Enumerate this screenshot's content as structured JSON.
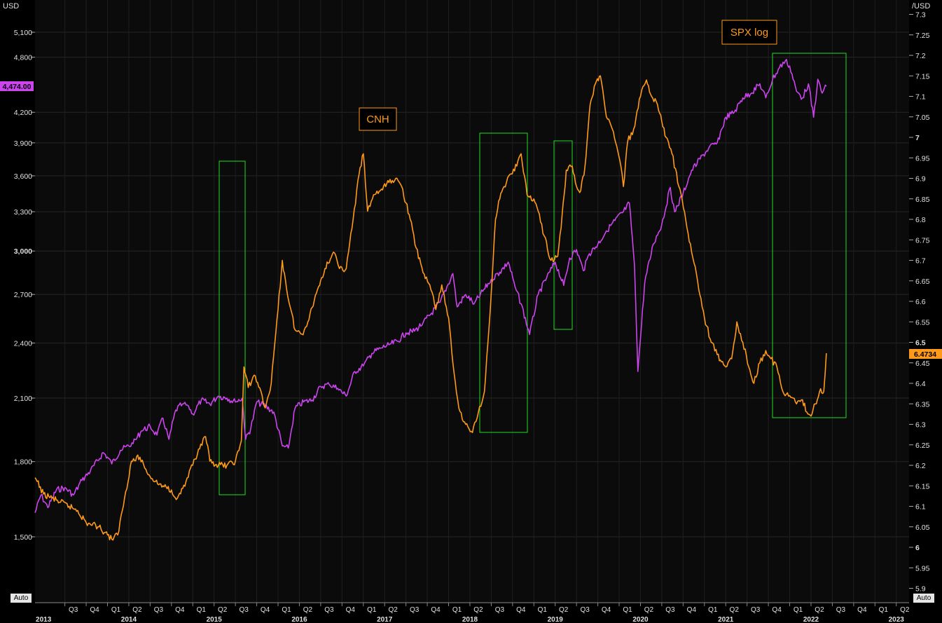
{
  "chart_data": {
    "type": "line",
    "left_axis": {
      "unit_label": "USD",
      "ticks": [
        "1,500",
        "1,800",
        "2,100",
        "2,400",
        "2,700",
        "3,000",
        "3,300",
        "3,600",
        "3,900",
        "4,200",
        "4,800",
        "5,100"
      ],
      "bold_ticks": [
        "3,000"
      ],
      "last_value": "4,474.00",
      "scale": "log"
    },
    "right_axis": {
      "unit_label": "/USD",
      "ticks": [
        "5.9",
        "5.95",
        "6",
        "6.05",
        "6.1",
        "6.15",
        "6.2",
        "6.25",
        "6.3",
        "6.35",
        "6.4",
        "6.45",
        "6.5",
        "6.55",
        "6.6",
        "6.65",
        "6.7",
        "6.75",
        "6.8",
        "6.85",
        "6.9",
        "6.95",
        "7",
        "7.05",
        "7.1",
        "7.15",
        "7.2",
        "7.25",
        "7.3"
      ],
      "bold_ticks": [
        "6",
        "6.5",
        "7"
      ],
      "last_value": "6.4734"
    },
    "x_axis": {
      "quarters": [
        {
          "t": 2013.5,
          "label": "Q3"
        },
        {
          "t": 2013.75,
          "label": "Q4"
        },
        {
          "t": 2014.0,
          "label": "Q1"
        },
        {
          "t": 2014.25,
          "label": "Q2"
        },
        {
          "t": 2014.5,
          "label": "Q3"
        },
        {
          "t": 2014.75,
          "label": "Q4"
        },
        {
          "t": 2015.0,
          "label": "Q1"
        },
        {
          "t": 2015.25,
          "label": "Q2"
        },
        {
          "t": 2015.5,
          "label": "Q3"
        },
        {
          "t": 2015.75,
          "label": "Q4"
        },
        {
          "t": 2016.0,
          "label": "Q1"
        },
        {
          "t": 2016.25,
          "label": "Q2"
        },
        {
          "t": 2016.5,
          "label": "Q3"
        },
        {
          "t": 2016.75,
          "label": "Q4"
        },
        {
          "t": 2017.0,
          "label": "Q1"
        },
        {
          "t": 2017.25,
          "label": "Q2"
        },
        {
          "t": 2017.5,
          "label": "Q3"
        },
        {
          "t": 2017.75,
          "label": "Q4"
        },
        {
          "t": 2018.0,
          "label": "Q1"
        },
        {
          "t": 2018.25,
          "label": "Q2"
        },
        {
          "t": 2018.5,
          "label": "Q3"
        },
        {
          "t": 2018.75,
          "label": "Q4"
        },
        {
          "t": 2019.0,
          "label": "Q1"
        },
        {
          "t": 2019.25,
          "label": "Q2"
        },
        {
          "t": 2019.5,
          "label": "Q3"
        },
        {
          "t": 2019.75,
          "label": "Q4"
        },
        {
          "t": 2020.0,
          "label": "Q1"
        },
        {
          "t": 2020.25,
          "label": "Q2"
        },
        {
          "t": 2020.5,
          "label": "Q3"
        },
        {
          "t": 2020.75,
          "label": "Q4"
        },
        {
          "t": 2021.0,
          "label": "Q1"
        },
        {
          "t": 2021.25,
          "label": "Q2"
        },
        {
          "t": 2021.5,
          "label": "Q3"
        },
        {
          "t": 2021.75,
          "label": "Q4"
        },
        {
          "t": 2022.0,
          "label": "Q1"
        },
        {
          "t": 2022.25,
          "label": "Q2"
        },
        {
          "t": 2022.5,
          "label": "Q3"
        },
        {
          "t": 2022.75,
          "label": "Q4"
        },
        {
          "t": 2023.0,
          "label": "Q1"
        },
        {
          "t": 2023.25,
          "label": "Q2"
        }
      ],
      "years": [
        {
          "t": 2013.25,
          "label": "2013"
        },
        {
          "t": 2014.25,
          "label": "2014"
        },
        {
          "t": 2015.25,
          "label": "2015"
        },
        {
          "t": 2016.25,
          "label": "2016"
        },
        {
          "t": 2017.25,
          "label": "2017"
        },
        {
          "t": 2018.25,
          "label": "2018"
        },
        {
          "t": 2019.25,
          "label": "2019"
        },
        {
          "t": 2020.25,
          "label": "2020"
        },
        {
          "t": 2021.25,
          "label": "2021"
        },
        {
          "t": 2022.25,
          "label": "2022"
        },
        {
          "t": 2023.25,
          "label": "2023"
        }
      ]
    },
    "series": [
      {
        "name": "SPX log",
        "axis": "left",
        "color": "#cc44ee",
        "points": [
          [
            2013.15,
            1590
          ],
          [
            2013.22,
            1660
          ],
          [
            2013.3,
            1610
          ],
          [
            2013.4,
            1680
          ],
          [
            2013.5,
            1690
          ],
          [
            2013.6,
            1660
          ],
          [
            2013.7,
            1720
          ],
          [
            2013.8,
            1760
          ],
          [
            2013.95,
            1840
          ],
          [
            2014.0,
            1820
          ],
          [
            2014.05,
            1790
          ],
          [
            2014.15,
            1850
          ],
          [
            2014.3,
            1880
          ],
          [
            2014.4,
            1940
          ],
          [
            2014.5,
            1960
          ],
          [
            2014.58,
            1920
          ],
          [
            2014.65,
            2000
          ],
          [
            2014.72,
            1900
          ],
          [
            2014.8,
            2040
          ],
          [
            2014.88,
            2070
          ],
          [
            2014.95,
            2060
          ],
          [
            2015.0,
            2020
          ],
          [
            2015.1,
            2090
          ],
          [
            2015.2,
            2070
          ],
          [
            2015.3,
            2110
          ],
          [
            2015.4,
            2100
          ],
          [
            2015.5,
            2080
          ],
          [
            2015.58,
            2100
          ],
          [
            2015.62,
            1900
          ],
          [
            2015.68,
            1950
          ],
          [
            2015.75,
            2080
          ],
          [
            2015.85,
            2060
          ],
          [
            2015.95,
            2030
          ],
          [
            2016.05,
            1870
          ],
          [
            2016.12,
            1860
          ],
          [
            2016.2,
            2050
          ],
          [
            2016.3,
            2080
          ],
          [
            2016.4,
            2090
          ],
          [
            2016.5,
            2160
          ],
          [
            2016.6,
            2170
          ],
          [
            2016.7,
            2150
          ],
          [
            2016.8,
            2110
          ],
          [
            2016.9,
            2240
          ],
          [
            2017.0,
            2270
          ],
          [
            2017.1,
            2340
          ],
          [
            2017.2,
            2370
          ],
          [
            2017.3,
            2390
          ],
          [
            2017.4,
            2410
          ],
          [
            2017.5,
            2460
          ],
          [
            2017.6,
            2470
          ],
          [
            2017.7,
            2520
          ],
          [
            2017.8,
            2580
          ],
          [
            2017.9,
            2650
          ],
          [
            2018.05,
            2840
          ],
          [
            2018.1,
            2620
          ],
          [
            2018.2,
            2700
          ],
          [
            2018.3,
            2640
          ],
          [
            2018.4,
            2720
          ],
          [
            2018.5,
            2800
          ],
          [
            2018.6,
            2850
          ],
          [
            2018.7,
            2920
          ],
          [
            2018.78,
            2750
          ],
          [
            2018.85,
            2640
          ],
          [
            2018.95,
            2450
          ],
          [
            2019.05,
            2700
          ],
          [
            2019.15,
            2810
          ],
          [
            2019.25,
            2920
          ],
          [
            2019.35,
            2760
          ],
          [
            2019.42,
            2950
          ],
          [
            2019.5,
            3010
          ],
          [
            2019.58,
            2860
          ],
          [
            2019.65,
            2980
          ],
          [
            2019.75,
            3050
          ],
          [
            2019.85,
            3150
          ],
          [
            2019.95,
            3230
          ],
          [
            2020.05,
            3300
          ],
          [
            2020.12,
            3370
          ],
          [
            2020.18,
            2900
          ],
          [
            2020.22,
            2240
          ],
          [
            2020.3,
            2780
          ],
          [
            2020.4,
            3050
          ],
          [
            2020.5,
            3200
          ],
          [
            2020.6,
            3500
          ],
          [
            2020.65,
            3300
          ],
          [
            2020.75,
            3450
          ],
          [
            2020.85,
            3650
          ],
          [
            2020.95,
            3750
          ],
          [
            2021.05,
            3850
          ],
          [
            2021.15,
            3900
          ],
          [
            2021.25,
            4150
          ],
          [
            2021.35,
            4200
          ],
          [
            2021.45,
            4350
          ],
          [
            2021.55,
            4400
          ],
          [
            2021.65,
            4500
          ],
          [
            2021.72,
            4350
          ],
          [
            2021.8,
            4550
          ],
          [
            2021.88,
            4680
          ],
          [
            2021.95,
            4760
          ],
          [
            2022.0,
            4700
          ],
          [
            2022.08,
            4420
          ],
          [
            2022.15,
            4350
          ],
          [
            2022.22,
            4500
          ],
          [
            2022.28,
            4150
          ],
          [
            2022.33,
            4550
          ],
          [
            2022.38,
            4400
          ],
          [
            2022.43,
            4474
          ]
        ]
      },
      {
        "name": "CNH",
        "axis": "right",
        "color": "#ff9a1a",
        "points": [
          [
            2013.15,
            6.17
          ],
          [
            2013.25,
            6.13
          ],
          [
            2013.35,
            6.12
          ],
          [
            2013.45,
            6.11
          ],
          [
            2013.55,
            6.1
          ],
          [
            2013.65,
            6.09
          ],
          [
            2013.75,
            6.06
          ],
          [
            2013.9,
            6.05
          ],
          [
            2014.0,
            6.03
          ],
          [
            2014.05,
            6.02
          ],
          [
            2014.12,
            6.03
          ],
          [
            2014.2,
            6.12
          ],
          [
            2014.28,
            6.21
          ],
          [
            2014.38,
            6.22
          ],
          [
            2014.45,
            6.19
          ],
          [
            2014.55,
            6.16
          ],
          [
            2014.65,
            6.15
          ],
          [
            2014.75,
            6.14
          ],
          [
            2014.82,
            6.12
          ],
          [
            2014.92,
            6.16
          ],
          [
            2015.0,
            6.2
          ],
          [
            2015.08,
            6.24
          ],
          [
            2015.15,
            6.27
          ],
          [
            2015.2,
            6.21
          ],
          [
            2015.3,
            6.2
          ],
          [
            2015.4,
            6.2
          ],
          [
            2015.5,
            6.21
          ],
          [
            2015.57,
            6.26
          ],
          [
            2015.6,
            6.44
          ],
          [
            2015.65,
            6.39
          ],
          [
            2015.72,
            6.42
          ],
          [
            2015.8,
            6.38
          ],
          [
            2015.85,
            6.34
          ],
          [
            2015.92,
            6.4
          ],
          [
            2016.0,
            6.58
          ],
          [
            2016.05,
            6.7
          ],
          [
            2016.1,
            6.63
          ],
          [
            2016.2,
            6.53
          ],
          [
            2016.28,
            6.52
          ],
          [
            2016.35,
            6.55
          ],
          [
            2016.45,
            6.62
          ],
          [
            2016.55,
            6.68
          ],
          [
            2016.65,
            6.72
          ],
          [
            2016.72,
            6.68
          ],
          [
            2016.8,
            6.68
          ],
          [
            2016.88,
            6.8
          ],
          [
            2016.95,
            6.91
          ],
          [
            2017.0,
            6.96
          ],
          [
            2017.05,
            6.82
          ],
          [
            2017.12,
            6.86
          ],
          [
            2017.2,
            6.87
          ],
          [
            2017.3,
            6.89
          ],
          [
            2017.38,
            6.9
          ],
          [
            2017.45,
            6.88
          ],
          [
            2017.55,
            6.8
          ],
          [
            2017.62,
            6.73
          ],
          [
            2017.7,
            6.67
          ],
          [
            2017.78,
            6.64
          ],
          [
            2017.85,
            6.58
          ],
          [
            2017.92,
            6.64
          ],
          [
            2018.0,
            6.56
          ],
          [
            2018.05,
            6.45
          ],
          [
            2018.12,
            6.34
          ],
          [
            2018.2,
            6.3
          ],
          [
            2018.28,
            6.28
          ],
          [
            2018.35,
            6.33
          ],
          [
            2018.42,
            6.38
          ],
          [
            2018.5,
            6.62
          ],
          [
            2018.55,
            6.8
          ],
          [
            2018.6,
            6.85
          ],
          [
            2018.65,
            6.88
          ],
          [
            2018.72,
            6.91
          ],
          [
            2018.8,
            6.93
          ],
          [
            2018.85,
            6.96
          ],
          [
            2018.92,
            6.86
          ],
          [
            2019.0,
            6.85
          ],
          [
            2019.05,
            6.82
          ],
          [
            2019.12,
            6.76
          ],
          [
            2019.2,
            6.7
          ],
          [
            2019.28,
            6.71
          ],
          [
            2019.32,
            6.78
          ],
          [
            2019.38,
            6.92
          ],
          [
            2019.45,
            6.93
          ],
          [
            2019.5,
            6.88
          ],
          [
            2019.55,
            6.87
          ],
          [
            2019.6,
            6.93
          ],
          [
            2019.66,
            7.08
          ],
          [
            2019.72,
            7.13
          ],
          [
            2019.78,
            7.15
          ],
          [
            2019.85,
            7.05
          ],
          [
            2019.92,
            7.02
          ],
          [
            2019.97,
            6.98
          ],
          [
            2020.02,
            6.93
          ],
          [
            2020.05,
            6.88
          ],
          [
            2020.1,
            6.99
          ],
          [
            2020.17,
            7.02
          ],
          [
            2020.25,
            7.1
          ],
          [
            2020.32,
            7.14
          ],
          [
            2020.38,
            7.1
          ],
          [
            2020.45,
            7.08
          ],
          [
            2020.55,
            7.0
          ],
          [
            2020.62,
            6.96
          ],
          [
            2020.7,
            6.88
          ],
          [
            2020.78,
            6.8
          ],
          [
            2020.85,
            6.72
          ],
          [
            2020.92,
            6.65
          ],
          [
            2021.0,
            6.56
          ],
          [
            2021.08,
            6.5
          ],
          [
            2021.15,
            6.47
          ],
          [
            2021.25,
            6.44
          ],
          [
            2021.32,
            6.46
          ],
          [
            2021.38,
            6.55
          ],
          [
            2021.45,
            6.5
          ],
          [
            2021.52,
            6.44
          ],
          [
            2021.58,
            6.4
          ],
          [
            2021.65,
            6.45
          ],
          [
            2021.72,
            6.48
          ],
          [
            2021.78,
            6.46
          ],
          [
            2021.85,
            6.44
          ],
          [
            2021.92,
            6.38
          ],
          [
            2022.0,
            6.37
          ],
          [
            2022.08,
            6.35
          ],
          [
            2022.15,
            6.36
          ],
          [
            2022.2,
            6.33
          ],
          [
            2022.25,
            6.32
          ],
          [
            2022.3,
            6.35
          ],
          [
            2022.35,
            6.38
          ],
          [
            2022.4,
            6.38
          ],
          [
            2022.43,
            6.4734
          ]
        ]
      }
    ],
    "legend_labels": [
      "CNH",
      "SPX log"
    ],
    "highlight_boxes_count": 4,
    "grid": true,
    "auto_buttons": [
      "Auto",
      "Auto"
    ]
  }
}
